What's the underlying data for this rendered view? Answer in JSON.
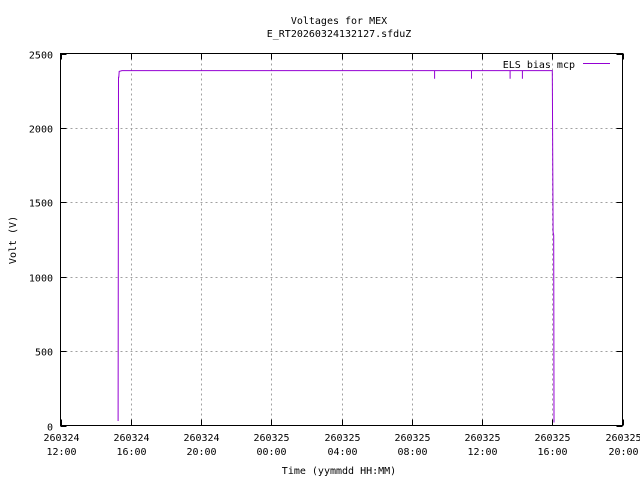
{
  "chart_data": {
    "type": "line",
    "title": "Voltages for MEX",
    "subtitle": "E_RT20260324132127.sfduZ",
    "xlabel": "Time (yymmdd HH:MM)",
    "ylabel": "Volt (V)",
    "xlim": [
      12,
      44
    ],
    "ylim": [
      0,
      2500
    ],
    "yticks": [
      0,
      500,
      1000,
      1500,
      2000,
      2500
    ],
    "xticks": [
      {
        "x": 12,
        "date": "260324",
        "time": "12:00"
      },
      {
        "x": 16,
        "date": "260324",
        "time": "16:00"
      },
      {
        "x": 20,
        "date": "260324",
        "time": "20:00"
      },
      {
        "x": 24,
        "date": "260325",
        "time": "00:00"
      },
      {
        "x": 28,
        "date": "260325",
        "time": "04:00"
      },
      {
        "x": 32,
        "date": "260325",
        "time": "08:00"
      },
      {
        "x": 36,
        "date": "260325",
        "time": "12:00"
      },
      {
        "x": 40,
        "date": "260325",
        "time": "16:00"
      },
      {
        "x": 44,
        "date": "260325",
        "time": "20:00"
      }
    ],
    "grid": true,
    "legend_position": "top-right",
    "series": [
      {
        "name": "ELS bias mcp",
        "color": "#9400d3",
        "points": [
          [
            15.28,
            30
          ],
          [
            15.3,
            2340
          ],
          [
            15.32,
            2340
          ],
          [
            15.34,
            2380
          ],
          [
            15.5,
            2385
          ],
          [
            33.3,
            2385
          ],
          [
            33.3,
            2330
          ],
          [
            33.3,
            2385
          ],
          [
            35.4,
            2385
          ],
          [
            35.4,
            2330
          ],
          [
            35.4,
            2385
          ],
          [
            37.6,
            2385
          ],
          [
            37.6,
            2330
          ],
          [
            37.6,
            2385
          ],
          [
            38.3,
            2385
          ],
          [
            38.3,
            2330
          ],
          [
            38.3,
            2385
          ],
          [
            40.0,
            2385
          ],
          [
            40.05,
            1300
          ],
          [
            40.08,
            1280
          ],
          [
            40.1,
            20
          ]
        ]
      }
    ]
  }
}
